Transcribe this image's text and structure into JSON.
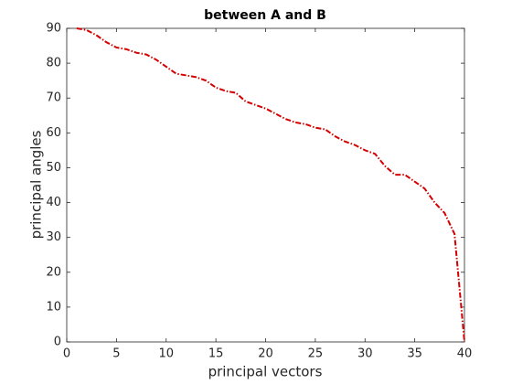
{
  "chart_data": {
    "type": "line",
    "title": "between A and B",
    "xlabel": "principal vectors",
    "ylabel": "principal angles",
    "x": [
      1,
      2,
      3,
      4,
      5,
      6,
      7,
      8,
      9,
      10,
      11,
      12,
      13,
      14,
      15,
      16,
      17,
      18,
      19,
      20,
      21,
      22,
      23,
      24,
      25,
      26,
      27,
      28,
      29,
      30,
      31,
      32,
      33,
      34,
      35,
      36,
      37,
      38,
      39,
      40
    ],
    "values": [
      90,
      89.5,
      88,
      86,
      84.5,
      84,
      83,
      82.5,
      81,
      79,
      77,
      76.5,
      76,
      75,
      73,
      72,
      71.5,
      69,
      68,
      67,
      65.5,
      64,
      63,
      62.5,
      61.5,
      61,
      59,
      57.5,
      56.5,
      55,
      54,
      50.5,
      48,
      48,
      46,
      44,
      40,
      37,
      31,
      0
    ],
    "color": "#d40000",
    "line_style": "dashdot",
    "xlim": [
      0,
      40
    ],
    "xticks": [
      0,
      5,
      10,
      15,
      20,
      25,
      30,
      35,
      40
    ],
    "ylim": [
      0,
      90
    ],
    "yticks": [
      0,
      10,
      20,
      30,
      40,
      50,
      60,
      70,
      80,
      90
    ]
  }
}
